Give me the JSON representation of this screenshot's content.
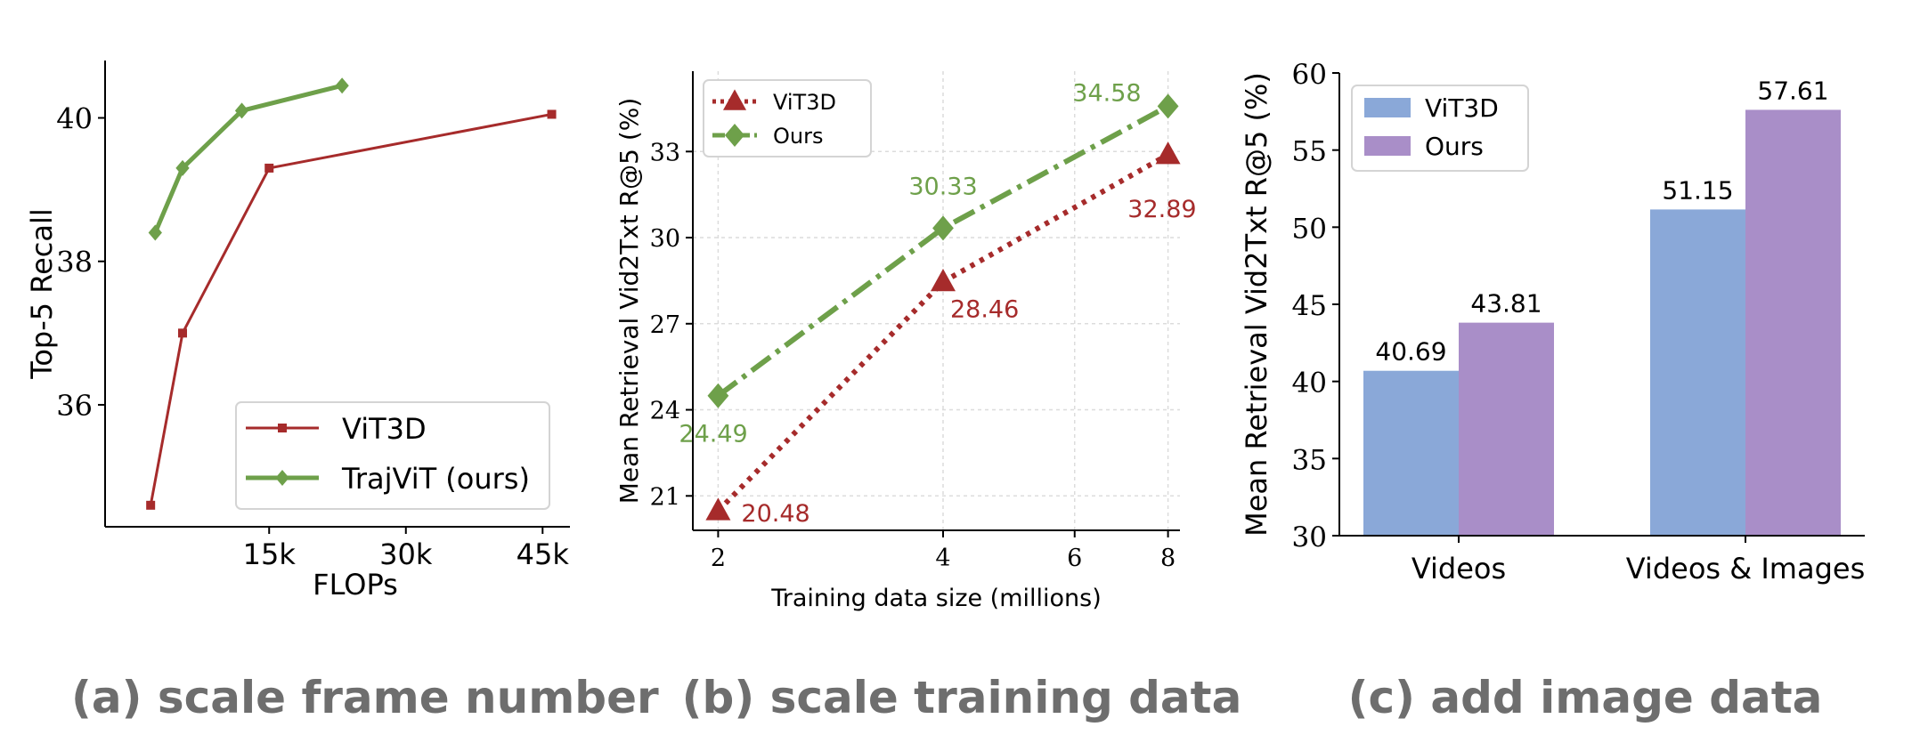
{
  "captions": {
    "a": "(a) scale frame number",
    "b": "(b) scale training data",
    "c": "(c) add image data"
  },
  "colors": {
    "red": "#a62b2b",
    "green": "#6ea04a",
    "blue": "#8aa8d8",
    "purple": "#a98ec8",
    "caption_gray": "#6e6e6e"
  },
  "chart_data": [
    {
      "id": "a",
      "type": "line",
      "xlabel": "FLOPs",
      "ylabel": "Top-5 Recall",
      "xlim": [
        -3000,
        48000
      ],
      "ylim": [
        34.3,
        40.8
      ],
      "xticks": [
        15000,
        30000,
        45000
      ],
      "xtick_labels": [
        "15k",
        "30k",
        "45k"
      ],
      "yticks": [
        36,
        38,
        40
      ],
      "ytick_labels": [
        "36",
        "38",
        "40"
      ],
      "grid": false,
      "legend": "lower-right",
      "series": [
        {
          "name": "ViT3D",
          "color": "#a62b2b",
          "marker": "square",
          "line": "solid",
          "x": [
            2000,
            5500,
            15000,
            46000
          ],
          "y": [
            34.6,
            37.0,
            39.3,
            40.05
          ]
        },
        {
          "name": "TrajViT (ours)",
          "color": "#6ea04a",
          "marker": "diamond",
          "line": "solid",
          "x": [
            2500,
            5500,
            12000,
            23000
          ],
          "y": [
            38.4,
            39.3,
            40.1,
            40.45
          ]
        }
      ]
    },
    {
      "id": "b",
      "type": "line",
      "xlabel": "Training data size (millions)",
      "ylabel": "Mean Retrieval Vid2Txt R@5 (%)",
      "x_scale": "log2",
      "xlim": [
        1.85,
        8.3
      ],
      "ylim": [
        19.8,
        35.8
      ],
      "xticks": [
        2,
        4,
        6,
        8
      ],
      "xtick_labels": [
        "2",
        "4",
        "6",
        "8"
      ],
      "yticks": [
        21,
        24,
        27,
        30,
        33
      ],
      "ytick_labels": [
        "21",
        "24",
        "27",
        "30",
        "33"
      ],
      "grid": true,
      "legend": "top-left",
      "series": [
        {
          "name": "ViT3D",
          "color": "#a62b2b",
          "marker": "triangle",
          "line": "dotted",
          "x": [
            2,
            4,
            8
          ],
          "y": [
            20.48,
            28.46,
            32.89
          ],
          "labels": [
            "20.48",
            "28.46",
            "32.89"
          ]
        },
        {
          "name": "Ours",
          "color": "#6ea04a",
          "marker": "diamond",
          "line": "dashdot",
          "x": [
            2,
            4,
            8
          ],
          "y": [
            24.49,
            30.33,
            34.58
          ],
          "labels": [
            "24.49",
            "30.33",
            "34.58"
          ]
        }
      ]
    },
    {
      "id": "c",
      "type": "bar",
      "xlabel": "",
      "ylabel": "Mean Retrieval Vid2Txt R@5 (%)",
      "categories": [
        "Videos",
        "Videos & Images"
      ],
      "ylim": [
        30,
        60
      ],
      "yticks": [
        30,
        35,
        40,
        45,
        50,
        55,
        60
      ],
      "ytick_labels": [
        "30",
        "35",
        "40",
        "45",
        "50",
        "55",
        "60"
      ],
      "grid": false,
      "legend": "top-left",
      "series": [
        {
          "name": "ViT3D",
          "color": "#8aa8d8",
          "values": [
            40.69,
            51.15
          ],
          "labels": [
            "40.69",
            "51.15"
          ]
        },
        {
          "name": "Ours",
          "color": "#a98ec8",
          "values": [
            43.81,
            57.61
          ],
          "labels": [
            "43.81",
            "57.61"
          ]
        }
      ]
    }
  ]
}
